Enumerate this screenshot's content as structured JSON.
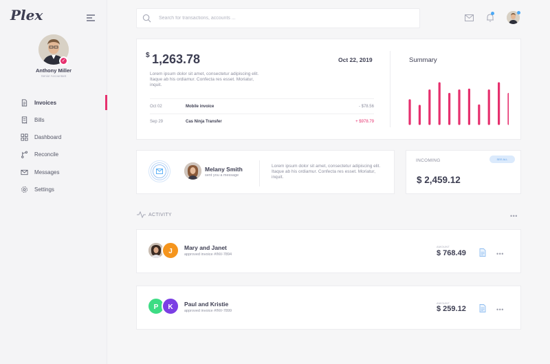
{
  "sidebar": {
    "logo": "Plex",
    "user_name": "Anthony Miller",
    "user_role": "Senior Accountant",
    "items": [
      {
        "label": "Invoices",
        "icon": "document-icon",
        "active": true
      },
      {
        "label": "Bills",
        "icon": "bill-icon",
        "active": false
      },
      {
        "label": "Dashboard",
        "icon": "grid-icon",
        "active": false
      },
      {
        "label": "Reconcile",
        "icon": "branch-icon",
        "active": false
      },
      {
        "label": "Messages",
        "icon": "mail-icon",
        "active": false
      },
      {
        "label": "Settings",
        "icon": "gear-icon",
        "active": false
      }
    ]
  },
  "topbar": {
    "search_placeholder": "Search for transactions, accounts ..."
  },
  "balance": {
    "currency": "$",
    "amount": "1,263.78",
    "date": "Oct 22, 2019",
    "description": "Lorem ipsum dolor sit amet, consectetur adipiscing elit. Itaque ab his ordiamur. Confecta res esset. Moriatur, inquit.",
    "transactions": [
      {
        "date": "Oct 02",
        "name": "Mobile invoice",
        "amount": "- $78.56",
        "type": "debit"
      },
      {
        "date": "Sep 29",
        "name": "Cas Ninja Transfer",
        "amount": "+ $978.79",
        "type": "credit"
      }
    ]
  },
  "summary": {
    "title": "Summary",
    "bars": [
      0.55,
      0.42,
      0.78,
      0.95,
      0.7,
      0.78,
      0.8,
      0.43,
      0.78,
      0.95,
      0.7
    ],
    "color": "#e6306e"
  },
  "message": {
    "name": "Melany Smith",
    "subtitle": "sent you a message",
    "text": "Lorem ipsum dolor sit amet, consectetur adipiscing elit. Itaque ab his ordiamur. Confecta res esset. Moriatur, inquit."
  },
  "incoming": {
    "label": "INCOMING",
    "see_all": "SEE ALL",
    "amount": "$ 2,459.12"
  },
  "activity": {
    "label": "ACTIVITY",
    "items": [
      {
        "name": "Mary and Janet",
        "subtitle": "approved invoice #INV-7894",
        "amount_label": "AMOUNT",
        "amount": "$ 768.49",
        "avatar2_initial": "J",
        "avatar2_color": "#f5951d"
      },
      {
        "name": "Paul and Kristie",
        "subtitle": "approved invoice #INV-7899",
        "amount_label": "AMOUNT",
        "amount": "$ 259.12",
        "avatar1_initial": "P",
        "avatar1_color": "#3ddc84",
        "avatar2_initial": "K",
        "avatar2_color": "#7b3fe4"
      }
    ]
  },
  "colors": {
    "accent": "#e6306e",
    "debit": "#8c8e9e",
    "credit": "#e6306e",
    "notification": "#4aa8f5"
  }
}
